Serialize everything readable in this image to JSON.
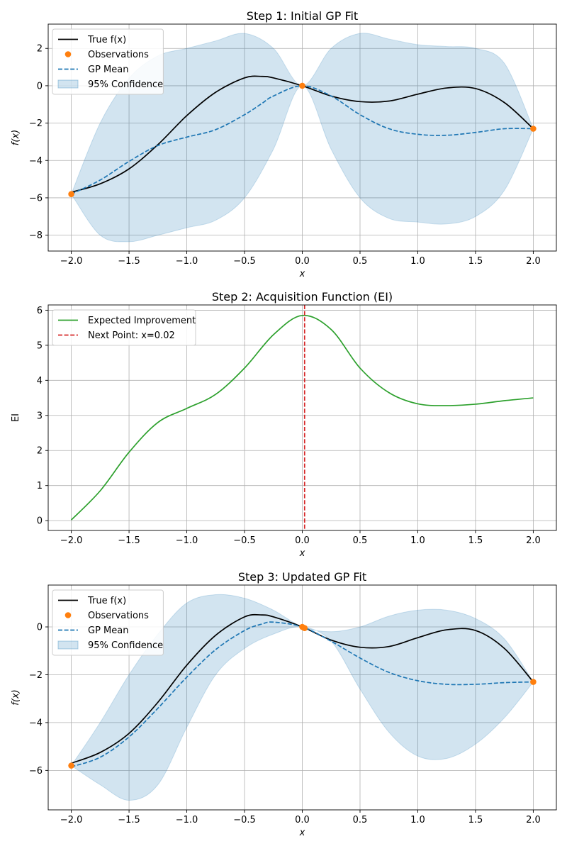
{
  "figure": {
    "background": "#ffffff"
  },
  "chart_data": [
    {
      "type": "line",
      "title": "Step 1: Initial GP Fit",
      "xlabel": "x",
      "ylabel": "f(x)",
      "xlim": [
        -2.2,
        2.2
      ],
      "ylim": [
        -8.85,
        3.3
      ],
      "xticks": [
        -2.0,
        -1.5,
        -1.0,
        -0.5,
        0.0,
        0.5,
        1.0,
        1.5,
        2.0
      ],
      "xtick_labels": [
        "−2.0",
        "−1.5",
        "−1.0",
        "−0.5",
        "0.0",
        "0.5",
        "1.0",
        "1.5",
        "2.0"
      ],
      "yticks": [
        -8,
        -6,
        -4,
        -2,
        0,
        2
      ],
      "ytick_labels": [
        "−8",
        "−6",
        "−4",
        "−2",
        "0",
        "2"
      ],
      "grid": true,
      "legend_position": "top-left",
      "legend": [
        {
          "label": "True f(x)",
          "kind": "line",
          "color": "#000000"
        },
        {
          "label": "Observations",
          "kind": "marker",
          "color": "#ff7f0e"
        },
        {
          "label": "GP Mean",
          "kind": "dashed",
          "color": "#1f77b4"
        },
        {
          "label": "95% Confidence",
          "kind": "patch",
          "color": "#1f77b4"
        }
      ],
      "x": [
        -2.0,
        -1.75,
        -1.5,
        -1.25,
        -1.0,
        -0.75,
        -0.5,
        -0.35,
        -0.25,
        0.0,
        0.25,
        0.5,
        0.75,
        1.0,
        1.25,
        1.5,
        1.75,
        2.0
      ],
      "series": [
        {
          "name": "True f(x)",
          "color": "#000000",
          "style": "solid",
          "values": [
            -5.7,
            -5.25,
            -4.45,
            -3.15,
            -1.6,
            -0.35,
            0.42,
            0.5,
            0.42,
            0.0,
            -0.55,
            -0.85,
            -0.82,
            -0.45,
            -0.12,
            -0.15,
            -0.9,
            -2.3
          ]
        },
        {
          "name": "GP Mean",
          "color": "#1f77b4",
          "style": "dashed",
          "values": [
            -5.8,
            -5.05,
            -4.05,
            -3.2,
            -2.75,
            -2.35,
            -1.55,
            -0.95,
            -0.55,
            0.0,
            -0.55,
            -1.55,
            -2.3,
            -2.6,
            -2.65,
            -2.5,
            -2.3,
            -2.3
          ]
        }
      ],
      "confidence": {
        "name": "95% Confidence",
        "color": "#1f77b4",
        "x": [
          -2.0,
          -1.75,
          -1.5,
          -1.25,
          -1.0,
          -0.75,
          -0.5,
          -0.25,
          0.0,
          0.25,
          0.5,
          0.75,
          1.0,
          1.25,
          1.5,
          1.75,
          2.0
        ],
        "upper": [
          -5.8,
          -2.0,
          0.4,
          1.6,
          2.0,
          2.4,
          2.8,
          2.0,
          0.0,
          2.0,
          2.8,
          2.5,
          2.2,
          2.1,
          2.0,
          1.2,
          -2.3
        ],
        "lower": [
          -5.8,
          -8.0,
          -8.35,
          -8.0,
          -7.6,
          -7.2,
          -6.0,
          -3.4,
          0.0,
          -3.4,
          -6.0,
          -7.1,
          -7.3,
          -7.4,
          -7.0,
          -5.6,
          -2.3
        ]
      },
      "observations": {
        "x": [
          -2.0,
          0.0,
          2.0
        ],
        "y": [
          -5.8,
          0.0,
          -2.3
        ]
      }
    },
    {
      "type": "line",
      "title": "Step 2: Acquisition Function (EI)",
      "xlabel": "x",
      "ylabel": "EI",
      "xlim": [
        -2.2,
        2.2
      ],
      "ylim": [
        -0.28,
        6.15
      ],
      "xticks": [
        -2.0,
        -1.5,
        -1.0,
        -0.5,
        0.0,
        0.5,
        1.0,
        1.5,
        2.0
      ],
      "xtick_labels": [
        "−2.0",
        "−1.5",
        "−1.0",
        "−0.5",
        "0.0",
        "0.5",
        "1.0",
        "1.5",
        "2.0"
      ],
      "yticks": [
        0,
        1,
        2,
        3,
        4,
        5,
        6
      ],
      "ytick_labels": [
        "0",
        "1",
        "2",
        "3",
        "4",
        "5",
        "6"
      ],
      "grid": true,
      "legend_position": "top-left",
      "legend": [
        {
          "label": "Expected Improvement",
          "kind": "line",
          "color": "#2ca02c"
        },
        {
          "label": "Next Point: x=0.02",
          "kind": "dashed",
          "color": "#d62728"
        }
      ],
      "x": [
        -2.0,
        -1.75,
        -1.5,
        -1.25,
        -1.0,
        -0.75,
        -0.5,
        -0.25,
        0.0,
        0.25,
        0.5,
        0.75,
        1.0,
        1.25,
        1.5,
        1.75,
        2.0
      ],
      "series": [
        {
          "name": "Expected Improvement",
          "color": "#2ca02c",
          "style": "solid",
          "values": [
            0.02,
            0.85,
            1.95,
            2.8,
            3.2,
            3.6,
            4.35,
            5.3,
            5.85,
            5.45,
            4.35,
            3.65,
            3.33,
            3.28,
            3.32,
            3.42,
            3.5
          ]
        }
      ],
      "vline": {
        "name": "Next Point: x=0.02",
        "x": 0.02,
        "color": "#d62728",
        "style": "dashed"
      }
    },
    {
      "type": "line",
      "title": "Step 3: Updated GP Fit",
      "xlabel": "x",
      "ylabel": "f(x)",
      "xlim": [
        -2.2,
        2.2
      ],
      "ylim": [
        -7.65,
        1.75
      ],
      "xticks": [
        -2.0,
        -1.5,
        -1.0,
        -0.5,
        0.0,
        0.5,
        1.0,
        1.5,
        2.0
      ],
      "xtick_labels": [
        "−2.0",
        "−1.5",
        "−1.0",
        "−0.5",
        "0.0",
        "0.5",
        "1.0",
        "1.5",
        "2.0"
      ],
      "yticks": [
        -6,
        -4,
        -2,
        0
      ],
      "ytick_labels": [
        "−6",
        "−4",
        "−2",
        "0"
      ],
      "grid": true,
      "legend_position": "top-left",
      "legend": [
        {
          "label": "True f(x)",
          "kind": "line",
          "color": "#000000"
        },
        {
          "label": "Observations",
          "kind": "marker",
          "color": "#ff7f0e"
        },
        {
          "label": "GP Mean",
          "kind": "dashed",
          "color": "#1f77b4"
        },
        {
          "label": "95% Confidence",
          "kind": "patch",
          "color": "#1f77b4"
        }
      ],
      "x": [
        -2.0,
        -1.75,
        -1.5,
        -1.25,
        -1.0,
        -0.75,
        -0.5,
        -0.35,
        -0.25,
        0.0,
        0.25,
        0.5,
        0.75,
        1.0,
        1.25,
        1.5,
        1.75,
        2.0
      ],
      "series": [
        {
          "name": "True f(x)",
          "color": "#000000",
          "style": "solid",
          "values": [
            -5.7,
            -5.25,
            -4.45,
            -3.15,
            -1.6,
            -0.35,
            0.42,
            0.5,
            0.42,
            0.0,
            -0.55,
            -0.85,
            -0.82,
            -0.45,
            -0.12,
            -0.15,
            -0.9,
            -2.3
          ]
        },
        {
          "name": "GP Mean",
          "color": "#1f77b4",
          "style": "dashed",
          "values": [
            -5.85,
            -5.45,
            -4.6,
            -3.4,
            -2.1,
            -0.95,
            -0.15,
            0.12,
            0.2,
            0.0,
            -0.6,
            -1.3,
            -1.9,
            -2.25,
            -2.4,
            -2.4,
            -2.33,
            -2.3
          ]
        }
      ],
      "confidence": {
        "name": "95% Confidence",
        "color": "#1f77b4",
        "x": [
          -2.0,
          -1.75,
          -1.5,
          -1.25,
          -1.0,
          -0.75,
          -0.5,
          -0.25,
          0.0,
          0.25,
          0.5,
          0.75,
          1.0,
          1.25,
          1.5,
          1.75,
          2.0
        ],
        "upper": [
          -5.8,
          -4.0,
          -2.0,
          -0.3,
          1.0,
          1.35,
          1.2,
          0.7,
          0.0,
          -0.2,
          0.0,
          0.45,
          0.7,
          0.7,
          0.35,
          -0.5,
          -2.3
        ],
        "lower": [
          -5.8,
          -6.6,
          -7.25,
          -6.6,
          -4.2,
          -2.0,
          -0.9,
          -0.3,
          0.0,
          -0.6,
          -2.6,
          -4.4,
          -5.4,
          -5.5,
          -4.9,
          -3.8,
          -2.3
        ]
      },
      "observations": {
        "x": [
          -2.0,
          0.0,
          0.02,
          2.0
        ],
        "y": [
          -5.8,
          0.0,
          -0.05,
          -2.3
        ]
      }
    }
  ]
}
